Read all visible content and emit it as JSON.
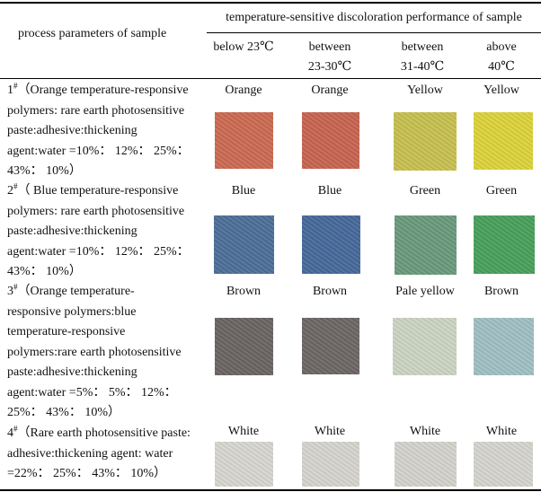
{
  "header": {
    "col1": "process parameters of sample",
    "group": "temperature-sensitive discoloration performance of sample",
    "sub": [
      {
        "line1": "below 23℃",
        "line2": ""
      },
      {
        "line1": "between",
        "line2": "23-30℃"
      },
      {
        "line1": "between",
        "line2": "31-40℃"
      },
      {
        "line1": "above",
        "line2": "40℃"
      }
    ]
  },
  "rows": [
    {
      "num": "1",
      "sup": "#",
      "lines": [
        "（Orange temperature-responsive",
        "polymers: rare earth photosensitive",
        "paste:adhesive:thickening",
        "agent:water =10%： 12%： 25%：",
        "43%： 10%）"
      ],
      "colors": [
        "Orange",
        "Orange",
        "Yellow",
        "Yellow"
      ],
      "swatches": [
        "#cc6a52",
        "#c86450",
        "#c8c050",
        "#dcd23a"
      ]
    },
    {
      "num": "2",
      "sup": "#",
      "lines": [
        "（ Blue temperature-responsive",
        "polymers: rare earth photosensitive",
        "paste:adhesive:thickening",
        "agent:water =10%： 12%： 25%：",
        "43%： 10%）"
      ],
      "colors": [
        "Blue",
        "Blue",
        "Green",
        "Green"
      ],
      "swatches": [
        "#4c6f98",
        "#46699a",
        "#6a9a7c",
        "#48a05a"
      ]
    },
    {
      "num": "3",
      "sup": "#",
      "lines": [
        "（Orange temperature-",
        "responsive polymers:blue",
        "temperature-responsive",
        "polymers:rare earth photosensitive",
        "paste:adhesive:thickening",
        "agent:water =5%： 5%： 12%：",
        "25%： 43%： 10%）"
      ],
      "colors": [
        "Brown",
        "Brown",
        "Pale yellow",
        "Brown"
      ],
      "swatches": [
        "#6a6462",
        "#6c6664",
        "#ccd4c2",
        "#a0c0c4"
      ]
    },
    {
      "num": "4",
      "sup": "#",
      "lines": [
        "（Rare earth photosensitive paste:",
        "adhesive:thickening agent: water",
        "=22%： 25%： 43%： 10%）"
      ],
      "colors": [
        "White",
        "White",
        "White",
        "White"
      ],
      "swatches": [
        "#d8d6d0",
        "#d6d4ce",
        "#d4d2cc",
        "#d6d4ce"
      ]
    }
  ]
}
